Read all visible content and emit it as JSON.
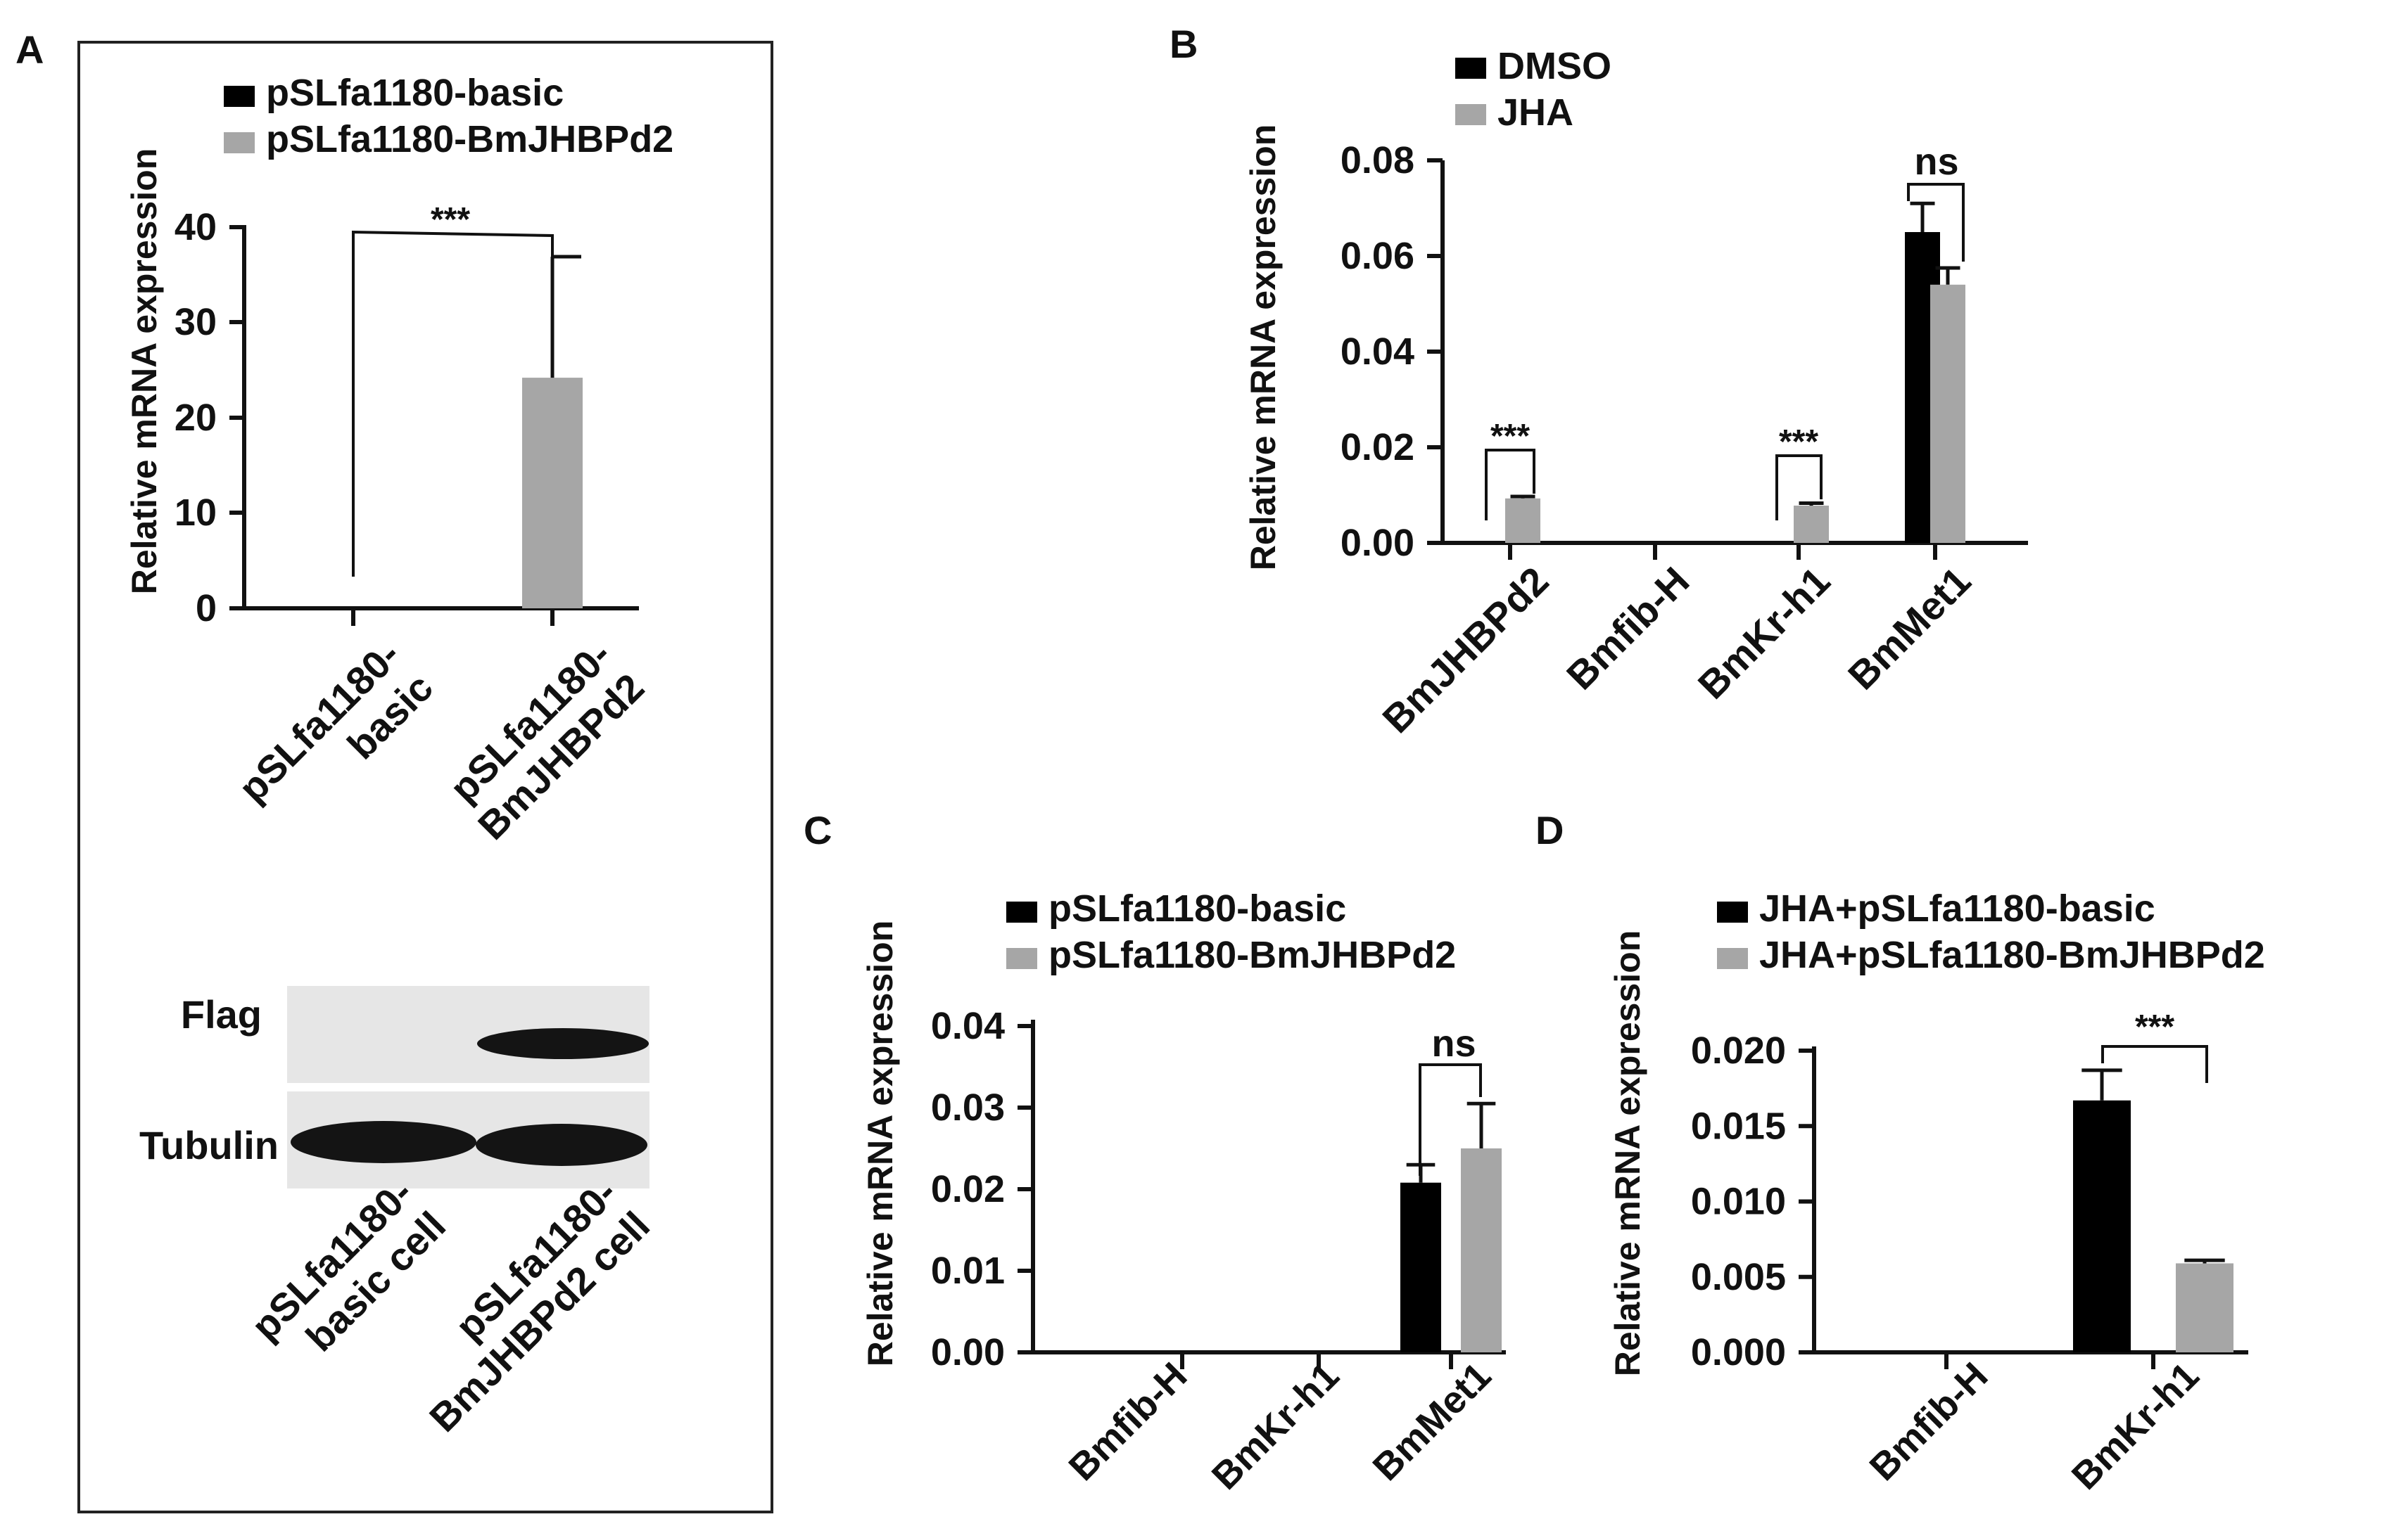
{
  "panel_labels": [
    "A",
    "B",
    "C",
    "D"
  ],
  "colors": {
    "black": "#000000",
    "gray": "#a6a6a6",
    "axis": "#111111"
  },
  "blot": {
    "rows": [
      "Flag",
      "Tubulin"
    ],
    "lanes": [
      {
        "line1": "pSLfa1180-",
        "line2": "basic cell"
      },
      {
        "line1": "pSLfa1180-",
        "line2": "BmJHBPd2 cell"
      }
    ]
  },
  "chart_data": [
    {
      "id": "A",
      "type": "bar",
      "ylabel": "Relative mRNA expression",
      "ylim": [
        0,
        40
      ],
      "yticks": [
        "0",
        "10",
        "20",
        "30",
        "40"
      ],
      "categories": [
        "pSLfa1180-\nbasic",
        "pSLfa1180-\nBmJHBPd2"
      ],
      "series": [
        {
          "name": "pSLfa1180-basic",
          "color": "#000000",
          "values": [
            0,
            null
          ],
          "errors": [
            0,
            null
          ]
        },
        {
          "name": "pSLfa1180-BmJHBPd2",
          "color": "#a6a6a6",
          "values": [
            null,
            24.2
          ],
          "errors": [
            null,
            12.7
          ]
        }
      ],
      "significance": [
        {
          "label": "***"
        }
      ]
    },
    {
      "id": "B",
      "type": "bar",
      "ylabel": "Relative mRNA expression",
      "ylim": [
        0,
        0.08
      ],
      "yticks": [
        "0.00",
        "0.02",
        "0.04",
        "0.06",
        "0.08"
      ],
      "categories": [
        "BmJHBPd2",
        "Bmfib-H",
        "BmKr-h1",
        "BmMet1"
      ],
      "series": [
        {
          "name": "DMSO",
          "color": "#000000",
          "values": [
            0,
            0,
            0,
            0.065
          ],
          "errors": [
            0,
            0,
            0,
            0.006
          ]
        },
        {
          "name": "JHA",
          "color": "#a6a6a6",
          "values": [
            0.0093,
            0,
            0.0078,
            0.054
          ],
          "errors": [
            0.0004,
            0,
            0.0005,
            0.0035
          ]
        }
      ],
      "significance": [
        {
          "label": "***"
        },
        {
          "label": "***"
        },
        {
          "label": "ns"
        }
      ]
    },
    {
      "id": "C",
      "type": "bar",
      "ylabel": "Relative mRNA expression",
      "ylim": [
        0,
        0.04
      ],
      "yticks": [
        "0.00",
        "0.01",
        "0.02",
        "0.03",
        "0.04"
      ],
      "categories": [
        "Bmfib-H",
        "BmKr-h1",
        "BmMet1"
      ],
      "series": [
        {
          "name": "pSLfa1180-basic",
          "color": "#000000",
          "values": [
            0,
            0,
            0.0208
          ],
          "errors": [
            0,
            0,
            0.0022
          ]
        },
        {
          "name": "pSLfa1180-BmJHBPd2",
          "color": "#a6a6a6",
          "values": [
            0,
            0,
            0.025
          ],
          "errors": [
            0,
            0,
            0.0055
          ]
        }
      ],
      "significance": [
        {
          "label": "ns"
        }
      ]
    },
    {
      "id": "D",
      "type": "bar",
      "ylabel": "Relative mRNA expression",
      "ylim": [
        0,
        0.02
      ],
      "yticks": [
        "0.000",
        "0.005",
        "0.010",
        "0.015",
        "0.020"
      ],
      "categories": [
        "Bmfib-H",
        "BmKr-h1"
      ],
      "series": [
        {
          "name": "JHA+pSLfa1180-basic",
          "color": "#000000",
          "values": [
            0,
            0.0167
          ],
          "errors": [
            0,
            0.002
          ]
        },
        {
          "name": "JHA+pSLfa1180-BmJHBPd2",
          "color": "#a6a6a6",
          "values": [
            0,
            0.0059
          ],
          "errors": [
            0,
            0.0002
          ]
        }
      ],
      "significance": [
        {
          "label": "***"
        }
      ]
    }
  ]
}
